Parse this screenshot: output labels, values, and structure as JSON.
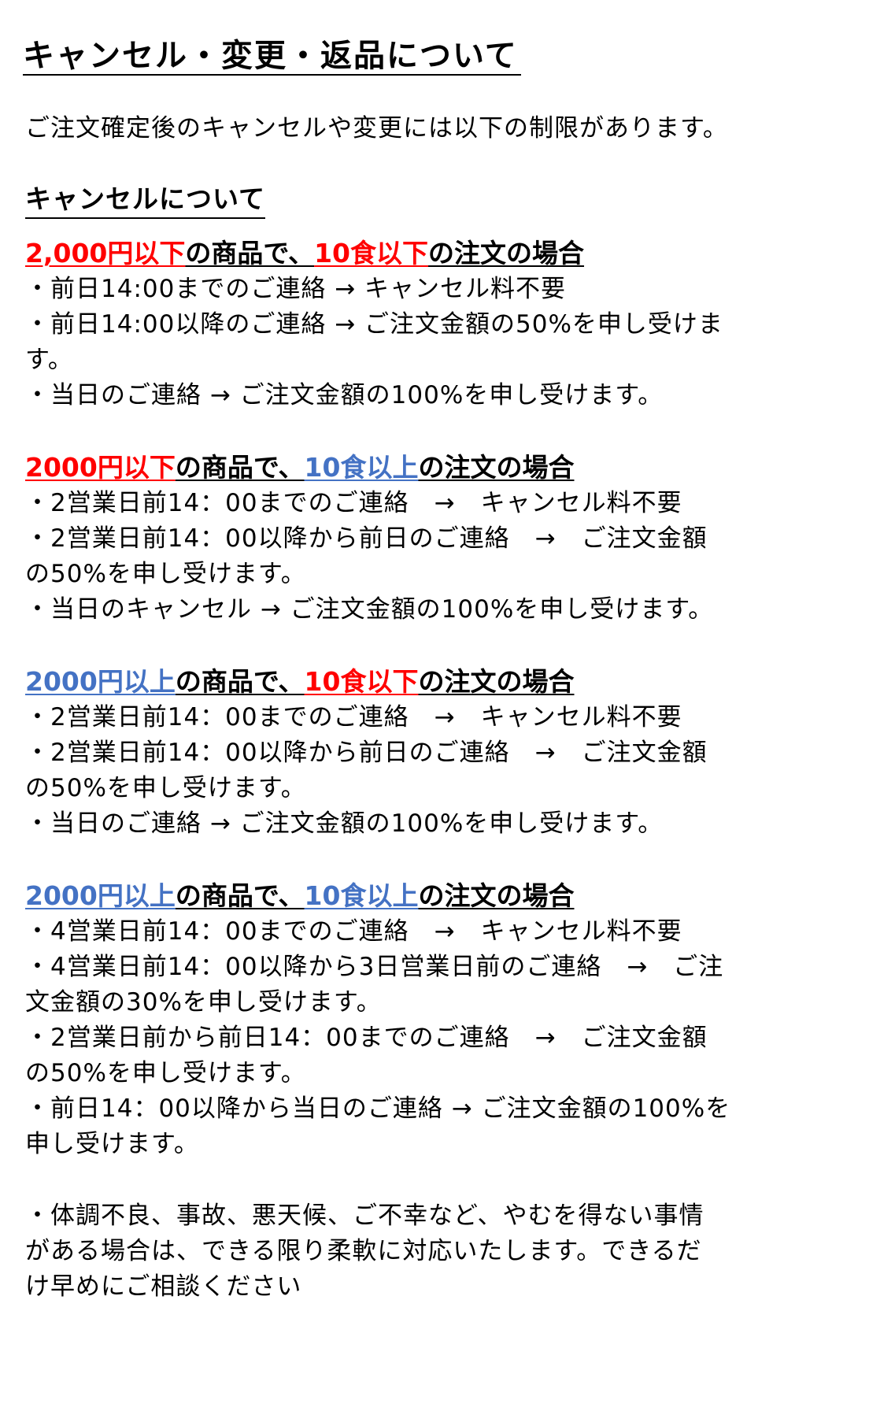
{
  "title": "キャンセル・変更・返品について",
  "intro": "ご注文確定後のキャンセルや変更には以下の制限があります。",
  "cancel_heading": "キャンセルについて",
  "colors": {
    "red": "#ff0000",
    "blue": "#4472c4"
  },
  "sections": [
    {
      "heading": {
        "price": "2,000円以下",
        "mid": "の商品で、",
        "qty": "10食以下",
        "tail": "の注文の場合",
        "price_color": "red",
        "qty_color": "red"
      },
      "lines": [
        "・前日14:00までのご連絡 → キャンセル料不要",
        "・前日14:00以降のご連絡 → ご注文金額の50%を申し受けま",
        "す。",
        "・当日のご連絡 → ご注文金額の100%を申し受けます。"
      ]
    },
    {
      "heading": {
        "price": "2000円以下",
        "mid": "の商品で、",
        "qty": "10食以上",
        "tail": "の注文の場合",
        "price_color": "red",
        "qty_color": "blue"
      },
      "lines": [
        "・2営業日前14：00までのご連絡　→　キャンセル料不要",
        "・2営業日前14：00以降から前日のご連絡　→　ご注文金額",
        "の50%を申し受けます。",
        "・当日のキャンセル → ご注文金額の100%を申し受けます。"
      ]
    },
    {
      "heading": {
        "price": "2000円以上",
        "mid": "の商品で、",
        "qty": "10食以下",
        "tail": "の注文の場合",
        "price_color": "blue",
        "qty_color": "red"
      },
      "lines": [
        "・2営業日前14：00までのご連絡　→　キャンセル料不要",
        "・2営業日前14：00以降から前日のご連絡　→　ご注文金額",
        "の50%を申し受けます。",
        "・当日のご連絡 → ご注文金額の100%を申し受けます。"
      ]
    },
    {
      "heading": {
        "price": "2000円以上",
        "mid": "の商品で、",
        "qty": "10食以上",
        "tail": "の注文の場合",
        "price_color": "blue",
        "qty_color": "blue"
      },
      "lines": [
        "・4営業日前14：00までのご連絡　→　キャンセル料不要",
        "・4営業日前14：00以降から3日営業日前のご連絡　→　ご注",
        "文金額の30%を申し受けます。",
        "・2営業日前から前日14：00までのご連絡　→　ご注文金額",
        "の50%を申し受けます。",
        "・前日14：00以降から当日のご連絡 → ご注文金額の100%を",
        "申し受けます。"
      ]
    }
  ],
  "note_lines": [
    "・体調不良、事故、悪天候、ご不幸など、やむを得ない事情",
    "がある場合は、できる限り柔軟に対応いたします。できるだ",
    "け早めにご相談ください"
  ]
}
